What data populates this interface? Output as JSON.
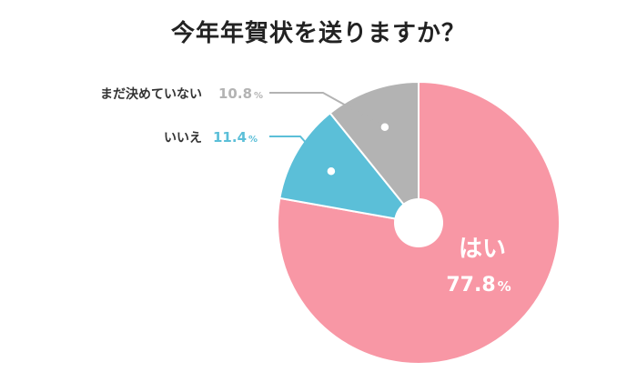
{
  "chart_data": {
    "type": "pie",
    "title": "今年年賀状を送りますか？",
    "slices": [
      {
        "label": "はい",
        "value": 77.8,
        "display": "77.8",
        "unit": "%",
        "color": "#f897a5"
      },
      {
        "label": "いいえ",
        "value": 11.4,
        "display": "11.4",
        "unit": "%",
        "color": "#5bbfd8"
      },
      {
        "label": "まだ決めていない",
        "value": 10.8,
        "display": "10.8",
        "unit": "%",
        "color": "#b3b3b3"
      }
    ],
    "legend": "none",
    "start_angle": "12 o'clock",
    "direction": "clockwise",
    "donut_hole": true
  }
}
